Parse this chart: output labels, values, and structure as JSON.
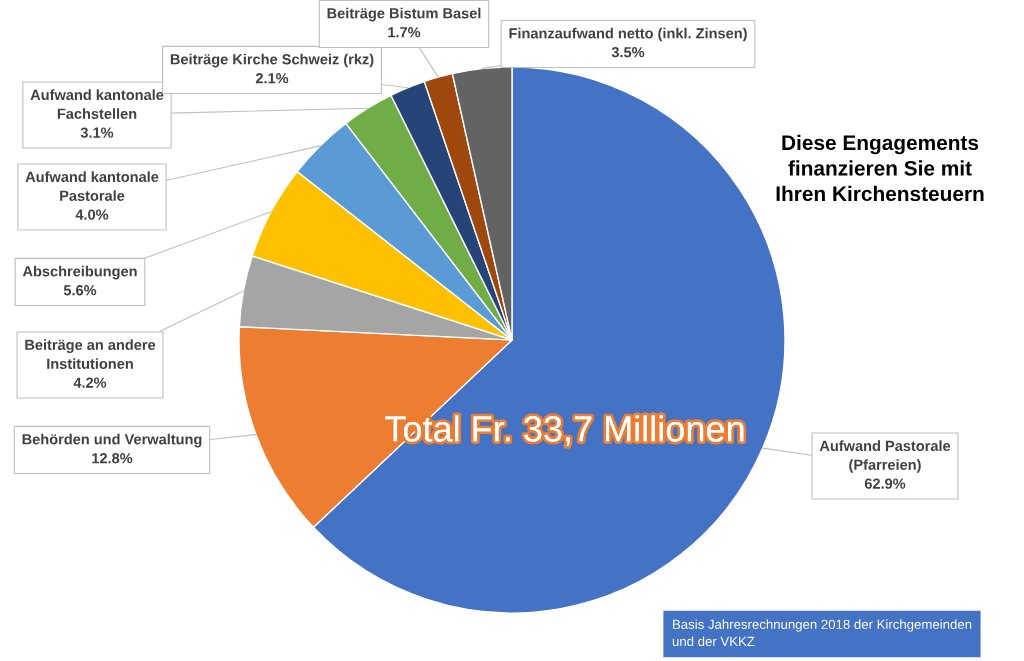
{
  "chart_data": {
    "type": "pie",
    "categories": [
      "Aufwand Pastorale\n(Pfarreien)",
      "Behörden und Verwaltung",
      "Beiträge an andere\nInstitutionen",
      "Abschreibungen",
      "Aufwand kantonale\nPastorale",
      "Aufwand kantonale\nFachstellen",
      "Beiträge Kirche Schweiz (rkz)",
      "Beiträge Bistum Basel",
      "Finanzaufwand netto (inkl. Zinsen)"
    ],
    "values": [
      62.9,
      12.8,
      4.2,
      5.6,
      4.0,
      3.1,
      2.1,
      1.7,
      3.5
    ],
    "colors": [
      "#4472c4",
      "#ed7d31",
      "#a5a5a5",
      "#ffc000",
      "#5b9bd5",
      "#70ad47",
      "#264478",
      "#9e480e",
      "#636363"
    ],
    "value_labels": [
      "62.9%",
      "12.8%",
      "4.2%",
      "5.6%",
      "4.0%",
      "3.1%",
      "2.1%",
      "1.7%",
      "3.5%"
    ],
    "annotations": [
      "Diese Engagements\nfinanzieren Sie mit\nIhren Kirchensteuern",
      "Total Fr. 33,7 Millionen",
      "Basis Jahresrechnungen 2018 der Kirchgemeinden\nund der VKKZ"
    ],
    "legend": false
  }
}
